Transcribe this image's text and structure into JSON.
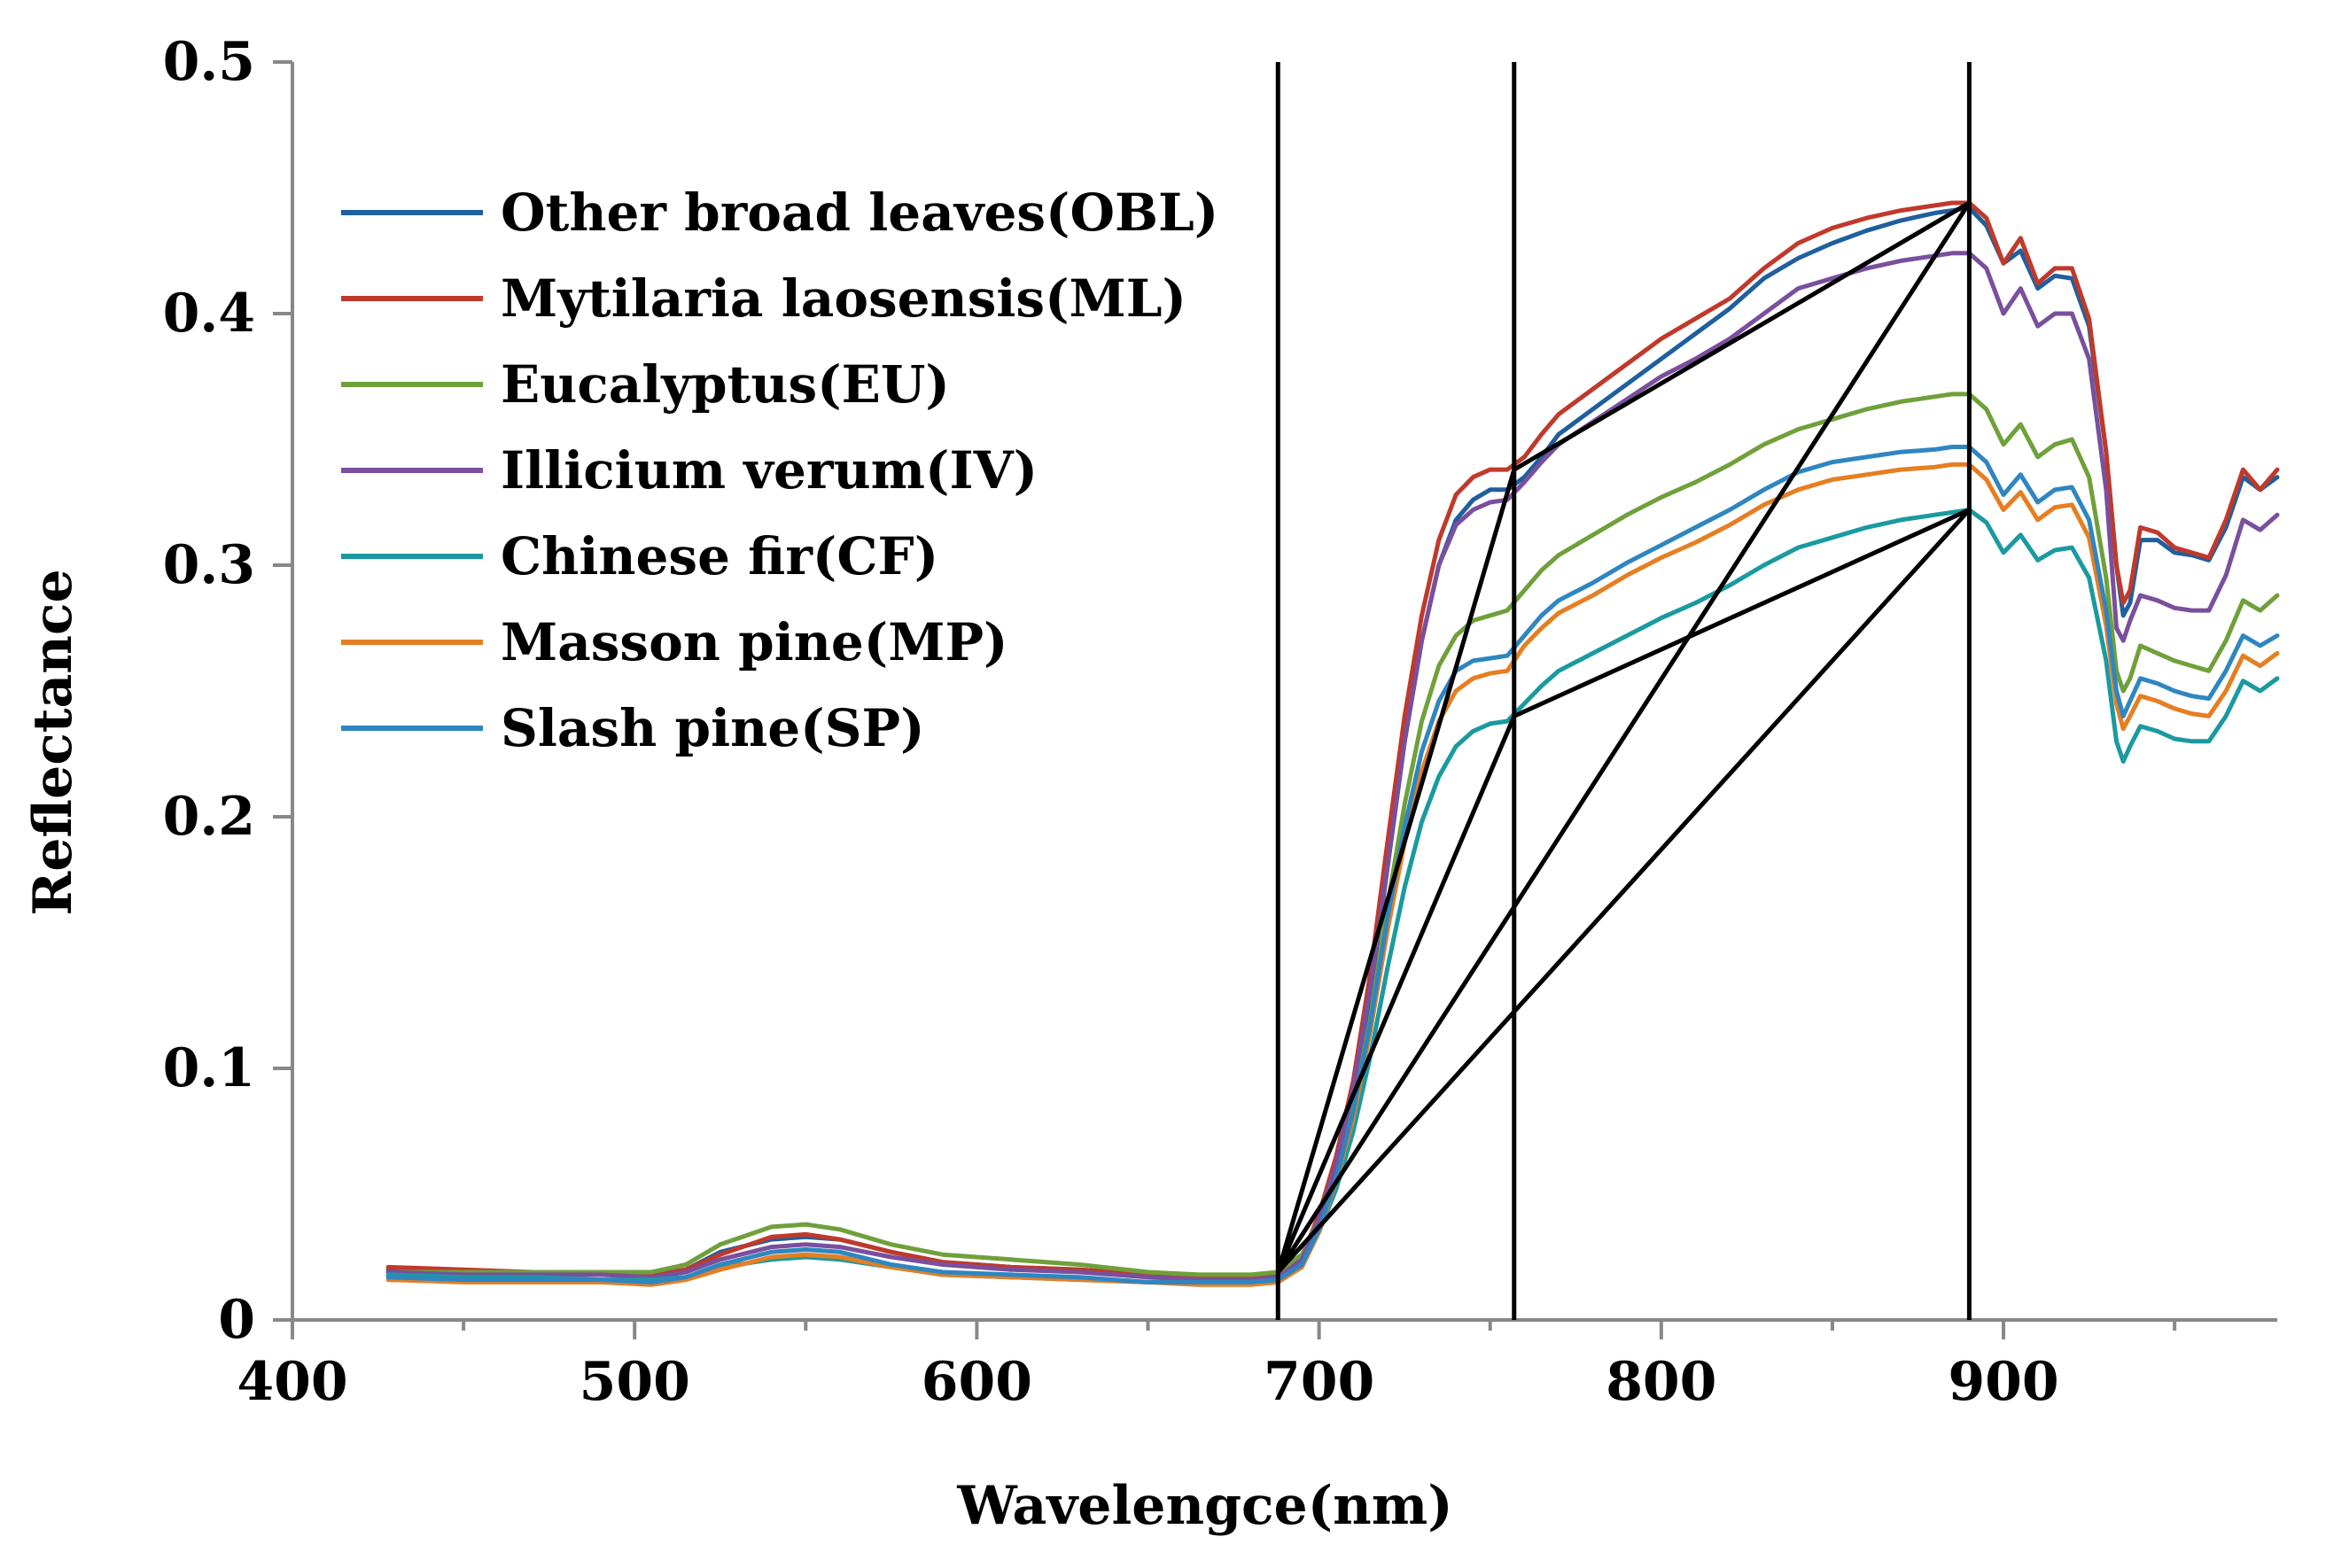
{
  "chart_data": {
    "type": "line",
    "xlabel": "Wavelengce(nm)",
    "ylabel": "Reflectance",
    "xlim": [
      400,
      980
    ],
    "ylim": [
      0,
      0.5
    ],
    "x_ticks": [
      400,
      500,
      600,
      700,
      800,
      900
    ],
    "x_minor_ticks": [
      450,
      550,
      650,
      750,
      850,
      950
    ],
    "y_ticks": [
      0,
      0.1,
      0.2,
      0.3,
      0.4,
      0.5
    ],
    "y_tick_labels": [
      "0",
      "0.1",
      "0.2",
      "0.3",
      "0.4",
      "0.5"
    ],
    "grid": false,
    "legend_position": "top-left",
    "x": [
      428,
      450,
      470,
      490,
      505,
      515,
      525,
      540,
      550,
      560,
      575,
      590,
      610,
      630,
      650,
      665,
      680,
      688,
      695,
      700,
      705,
      710,
      715,
      720,
      725,
      730,
      735,
      740,
      745,
      750,
      755,
      760,
      765,
      770,
      780,
      790,
      800,
      810,
      820,
      830,
      840,
      850,
      860,
      870,
      880,
      885,
      890,
      895,
      900,
      905,
      910,
      915,
      920,
      925,
      930,
      933,
      935,
      937,
      940,
      945,
      950,
      955,
      960,
      965,
      970,
      975,
      980
    ],
    "series": [
      {
        "name": "Other broad leaves(OBL)",
        "color": "#1f5f9e",
        "values": [
          0.02,
          0.019,
          0.019,
          0.018,
          0.018,
          0.02,
          0.027,
          0.032,
          0.033,
          0.032,
          0.027,
          0.023,
          0.021,
          0.02,
          0.018,
          0.017,
          0.017,
          0.018,
          0.025,
          0.04,
          0.06,
          0.09,
          0.13,
          0.18,
          0.23,
          0.27,
          0.3,
          0.318,
          0.326,
          0.33,
          0.33,
          0.335,
          0.343,
          0.352,
          0.362,
          0.372,
          0.382,
          0.392,
          0.402,
          0.414,
          0.422,
          0.428,
          0.433,
          0.437,
          0.44,
          0.441,
          0.442,
          0.435,
          0.42,
          0.425,
          0.41,
          0.415,
          0.414,
          0.395,
          0.345,
          0.3,
          0.28,
          0.285,
          0.31,
          0.31,
          0.305,
          0.304,
          0.302,
          0.315,
          0.335,
          0.33,
          0.335
        ]
      },
      {
        "name": "Mytilaria laosensis(ML)",
        "color": "#c0392b",
        "values": [
          0.021,
          0.02,
          0.019,
          0.019,
          0.018,
          0.02,
          0.026,
          0.033,
          0.034,
          0.032,
          0.027,
          0.023,
          0.021,
          0.02,
          0.018,
          0.017,
          0.017,
          0.018,
          0.025,
          0.042,
          0.065,
          0.095,
          0.138,
          0.19,
          0.24,
          0.28,
          0.31,
          0.328,
          0.335,
          0.338,
          0.338,
          0.343,
          0.352,
          0.36,
          0.37,
          0.38,
          0.39,
          0.398,
          0.406,
          0.418,
          0.428,
          0.434,
          0.438,
          0.441,
          0.443,
          0.444,
          0.444,
          0.438,
          0.42,
          0.43,
          0.412,
          0.418,
          0.418,
          0.398,
          0.345,
          0.3,
          0.285,
          0.29,
          0.315,
          0.313,
          0.307,
          0.305,
          0.303,
          0.318,
          0.338,
          0.33,
          0.338
        ]
      },
      {
        "name": "Eucalyptus(EU)",
        "color": "#6fa03a",
        "values": [
          0.019,
          0.019,
          0.019,
          0.019,
          0.019,
          0.022,
          0.03,
          0.037,
          0.038,
          0.036,
          0.03,
          0.026,
          0.024,
          0.022,
          0.019,
          0.018,
          0.018,
          0.019,
          0.026,
          0.04,
          0.06,
          0.085,
          0.12,
          0.165,
          0.205,
          0.238,
          0.26,
          0.272,
          0.278,
          0.28,
          0.282,
          0.29,
          0.298,
          0.304,
          0.312,
          0.32,
          0.327,
          0.333,
          0.34,
          0.348,
          0.354,
          0.358,
          0.362,
          0.365,
          0.367,
          0.368,
          0.368,
          0.362,
          0.348,
          0.356,
          0.343,
          0.348,
          0.35,
          0.335,
          0.295,
          0.258,
          0.25,
          0.255,
          0.268,
          0.265,
          0.262,
          0.26,
          0.258,
          0.27,
          0.286,
          0.282,
          0.288
        ]
      },
      {
        "name": "Illicium verum(IV)",
        "color": "#7a4f9e",
        "values": [
          0.019,
          0.018,
          0.018,
          0.018,
          0.017,
          0.019,
          0.024,
          0.029,
          0.03,
          0.029,
          0.025,
          0.022,
          0.02,
          0.019,
          0.017,
          0.016,
          0.016,
          0.017,
          0.024,
          0.04,
          0.062,
          0.092,
          0.132,
          0.18,
          0.23,
          0.27,
          0.3,
          0.316,
          0.322,
          0.325,
          0.326,
          0.333,
          0.341,
          0.348,
          0.357,
          0.366,
          0.375,
          0.382,
          0.39,
          0.4,
          0.41,
          0.414,
          0.418,
          0.421,
          0.423,
          0.424,
          0.424,
          0.418,
          0.4,
          0.41,
          0.395,
          0.4,
          0.4,
          0.382,
          0.33,
          0.275,
          0.27,
          0.278,
          0.288,
          0.286,
          0.283,
          0.282,
          0.282,
          0.296,
          0.318,
          0.314,
          0.32
        ]
      },
      {
        "name": "Chinese fir(CF)",
        "color": "#1a9aa0",
        "values": [
          0.018,
          0.017,
          0.017,
          0.016,
          0.016,
          0.017,
          0.021,
          0.024,
          0.025,
          0.024,
          0.021,
          0.018,
          0.017,
          0.016,
          0.015,
          0.015,
          0.015,
          0.016,
          0.022,
          0.035,
          0.052,
          0.075,
          0.105,
          0.14,
          0.172,
          0.198,
          0.216,
          0.228,
          0.234,
          0.237,
          0.238,
          0.245,
          0.252,
          0.258,
          0.265,
          0.272,
          0.279,
          0.285,
          0.292,
          0.3,
          0.307,
          0.311,
          0.315,
          0.318,
          0.32,
          0.321,
          0.322,
          0.317,
          0.305,
          0.312,
          0.302,
          0.306,
          0.307,
          0.295,
          0.262,
          0.23,
          0.222,
          0.228,
          0.236,
          0.234,
          0.231,
          0.23,
          0.23,
          0.24,
          0.254,
          0.25,
          0.255
        ]
      },
      {
        "name": "Masson pine(MP)",
        "color": "#e67e22",
        "values": [
          0.016,
          0.015,
          0.015,
          0.015,
          0.014,
          0.016,
          0.02,
          0.025,
          0.026,
          0.025,
          0.021,
          0.018,
          0.017,
          0.016,
          0.015,
          0.014,
          0.014,
          0.015,
          0.021,
          0.035,
          0.055,
          0.08,
          0.115,
          0.155,
          0.19,
          0.218,
          0.238,
          0.25,
          0.255,
          0.257,
          0.258,
          0.268,
          0.275,
          0.281,
          0.288,
          0.296,
          0.303,
          0.309,
          0.316,
          0.324,
          0.33,
          0.334,
          0.336,
          0.338,
          0.339,
          0.34,
          0.34,
          0.334,
          0.322,
          0.329,
          0.318,
          0.323,
          0.324,
          0.311,
          0.276,
          0.245,
          0.235,
          0.24,
          0.248,
          0.246,
          0.243,
          0.241,
          0.24,
          0.25,
          0.264,
          0.26,
          0.265
        ]
      },
      {
        "name": "Slash pine(SP)",
        "color": "#2e86c1",
        "values": [
          0.017,
          0.016,
          0.016,
          0.016,
          0.015,
          0.017,
          0.022,
          0.027,
          0.028,
          0.027,
          0.022,
          0.019,
          0.018,
          0.017,
          0.015,
          0.015,
          0.015,
          0.016,
          0.022,
          0.036,
          0.056,
          0.083,
          0.118,
          0.16,
          0.196,
          0.226,
          0.246,
          0.258,
          0.262,
          0.263,
          0.264,
          0.272,
          0.28,
          0.286,
          0.293,
          0.301,
          0.308,
          0.315,
          0.322,
          0.33,
          0.337,
          0.341,
          0.343,
          0.345,
          0.346,
          0.347,
          0.347,
          0.341,
          0.328,
          0.336,
          0.325,
          0.33,
          0.331,
          0.318,
          0.282,
          0.25,
          0.24,
          0.246,
          0.255,
          0.253,
          0.25,
          0.248,
          0.247,
          0.258,
          0.272,
          0.268,
          0.272
        ]
      }
    ],
    "annotations": {
      "vertical_lines_nm": [
        688,
        757,
        890
      ],
      "triangle_lines": [
        [
          [
            688,
            0.019
          ],
          [
            757,
            0.338
          ],
          [
            890,
            0.444
          ]
        ],
        [
          [
            688,
            0.019
          ],
          [
            890,
            0.444
          ]
        ],
        [
          [
            688,
            0.019
          ],
          [
            757,
            0.24
          ],
          [
            890,
            0.322
          ]
        ],
        [
          [
            688,
            0.019
          ],
          [
            890,
            0.322
          ]
        ]
      ]
    }
  }
}
